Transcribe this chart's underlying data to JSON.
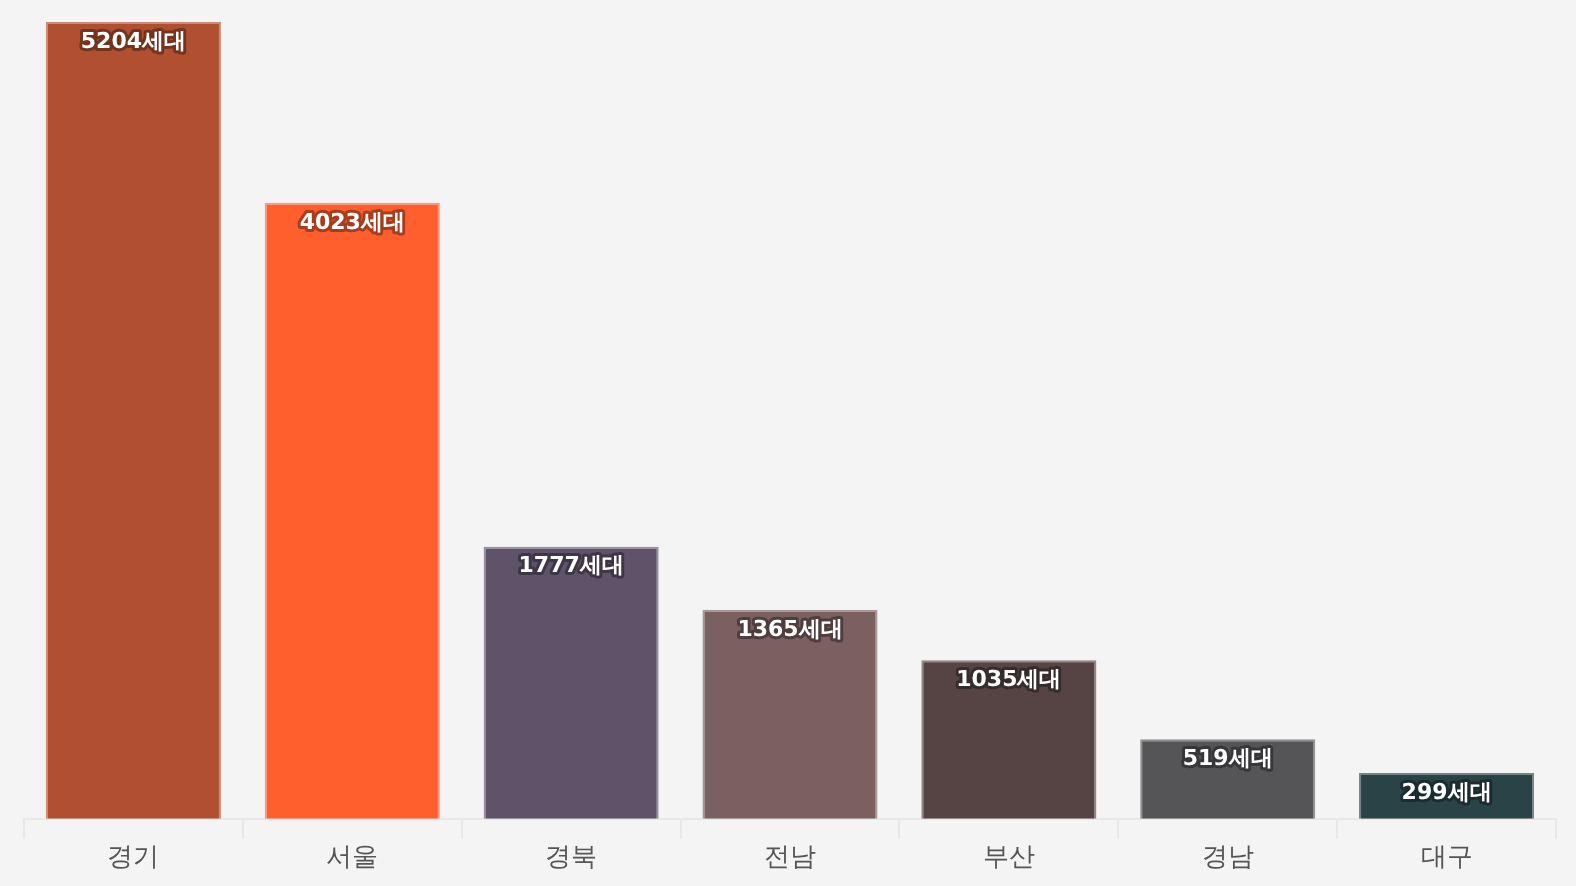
{
  "chart_data": {
    "type": "bar",
    "categories": [
      "경기",
      "서울",
      "경북",
      "전남",
      "부산",
      "경남",
      "대구"
    ],
    "values": [
      5204,
      4023,
      1777,
      1365,
      1035,
      519,
      299
    ],
    "colors": [
      "#b05030",
      "#ff5f2d",
      "#5f5369",
      "#7a605e",
      "#554443",
      "#555558",
      "#2a4347"
    ],
    "value_labels": [
      "5204세대",
      "4023세대",
      "1777세대",
      "1365세대",
      "1035세대",
      "519세대",
      "299세대"
    ],
    "ylim": [
      0,
      5204
    ],
    "tick_labels": "x",
    "grid": false,
    "legend": false
  }
}
